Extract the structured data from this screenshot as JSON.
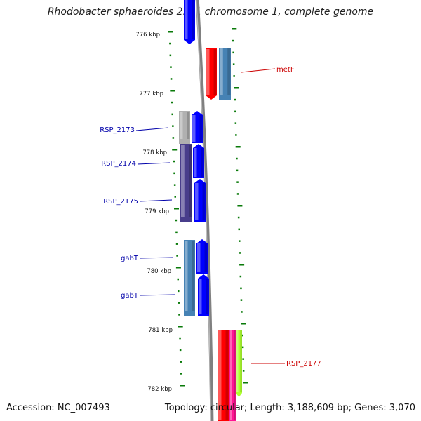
{
  "title": "Rhodobacter sphaeroides 2.4.1 chromosome 1, complete genome",
  "footer": {
    "accession": "Accession: NC_007493",
    "topology": "Topology: circular; Length: 3,188,609 bp; Genes: 3,070"
  },
  "kbp_labels": [
    "776 kbp",
    "777 kbp",
    "778 kbp",
    "779 kbp",
    "780 kbp",
    "781 kbp",
    "782 kbp"
  ],
  "gene_labels": [
    {
      "text": "metF",
      "color": "#cc0000",
      "side": "right"
    },
    {
      "text": "RSP_2173",
      "color": "#0000aa",
      "side": "left"
    },
    {
      "text": "RSP_2174",
      "color": "#0000aa",
      "side": "left"
    },
    {
      "text": "RSP_2175",
      "color": "#0000aa",
      "side": "left"
    },
    {
      "text": "gabT",
      "color": "#0000aa",
      "side": "left"
    },
    {
      "text": "gabT",
      "color": "#0000aa",
      "side": "left"
    },
    {
      "text": "RSP_2177",
      "color": "#cc0000",
      "side": "right"
    }
  ],
  "colors": {
    "backbone": "#808080",
    "tick": "#0a7a0a",
    "forward_gene": "#0000ff",
    "steel_gene": "#4682b4",
    "red_gene": "#ff0000",
    "pink_gene": "#ff1493",
    "lime_gene": "#adff2f",
    "gray_gene": "#b0b0b0",
    "indigo_gene": "#483d8b"
  }
}
